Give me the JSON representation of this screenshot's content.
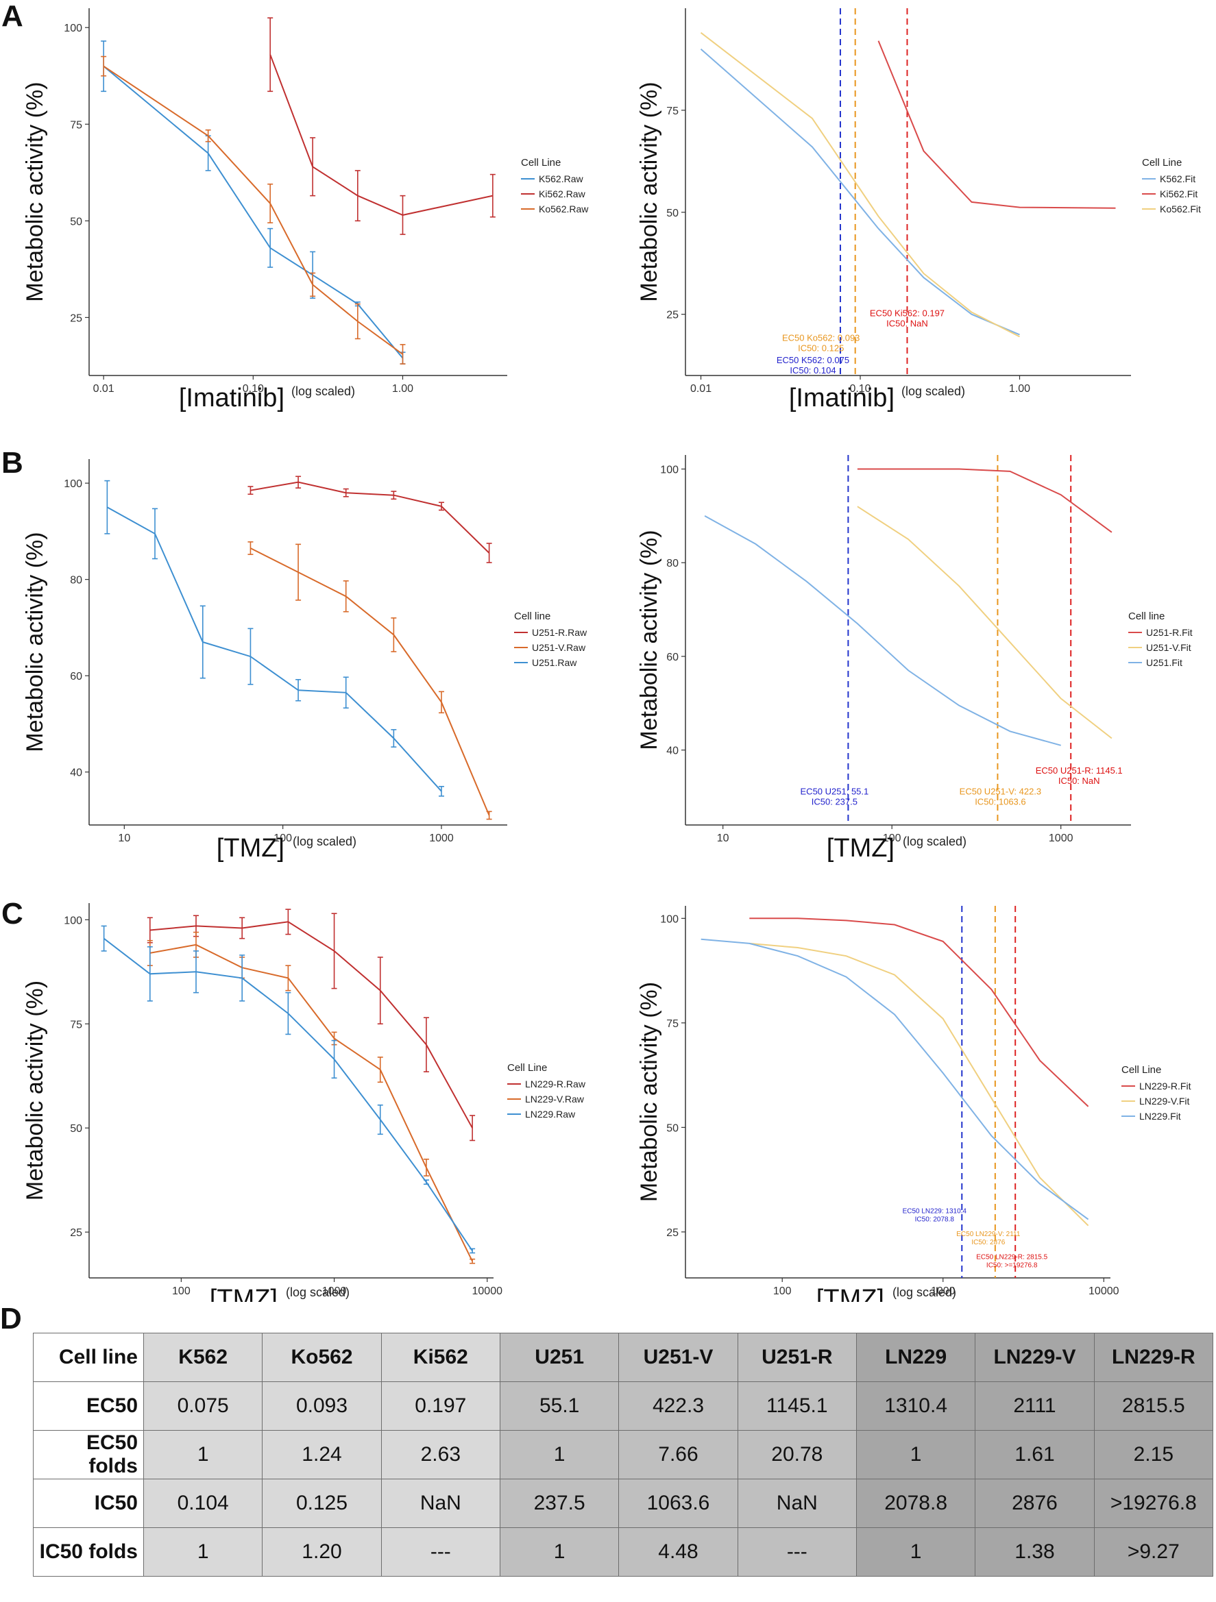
{
  "figure": {
    "panel_labels": [
      "A",
      "B",
      "C",
      "D"
    ],
    "y_axis_label": "Metabolic activity (%)",
    "x_suffix": "(log scaled)"
  },
  "chart_data": [
    {
      "id": "A-raw",
      "panel": "A",
      "type": "line",
      "error_bars": true,
      "xlabel": "[Imatinib]",
      "xlabel_suffix": "(log scaled)",
      "ylabel": "Metabolic activity (%)",
      "xscale": "log",
      "xlim": [
        0.008,
        5.0
      ],
      "ylim": [
        10,
        105
      ],
      "xticks": [
        0.01,
        0.1,
        1.0
      ],
      "xtick_labels": [
        "0.01",
        "0.10",
        "1.00"
      ],
      "yticks": [
        25,
        50,
        75,
        100
      ],
      "ytick_labels": [
        "25",
        "50",
        "75",
        "100"
      ],
      "legend_title": "Cell Line",
      "series": [
        {
          "name": "K562.Raw",
          "color": "#3d8fd1",
          "x": [
            0.01,
            0.05,
            0.13,
            0.25,
            0.5,
            1.0
          ],
          "y": [
            90,
            67.5,
            43,
            36,
            28.5,
            14.5
          ],
          "err": [
            6.5,
            4.5,
            5,
            6,
            0.5,
            1.5
          ]
        },
        {
          "name": "Ki562.Raw",
          "color": "#c03030",
          "x": [
            0.13,
            0.25,
            0.5,
            1.0,
            4.0
          ],
          "y": [
            93,
            64,
            56.5,
            51.5,
            56.5
          ],
          "err": [
            9.5,
            7.5,
            6.5,
            5,
            5.5
          ]
        },
        {
          "name": "Ko562.Raw",
          "color": "#d86a2a",
          "x": [
            0.01,
            0.05,
            0.13,
            0.25,
            0.5,
            1.0
          ],
          "y": [
            90,
            72,
            54.5,
            33.5,
            24,
            15.5
          ],
          "err": [
            2.5,
            1.5,
            5,
            3,
            4.5,
            2.5
          ]
        }
      ]
    },
    {
      "id": "A-fit",
      "panel": "A",
      "type": "line",
      "xlabel": "[Imatinib]",
      "xlabel_suffix": "(log scaled)",
      "ylabel": "Metabolic activity (%)",
      "xscale": "log",
      "xlim": [
        0.008,
        5.0
      ],
      "ylim": [
        10,
        100
      ],
      "xticks": [
        0.01,
        0.1,
        1.0
      ],
      "xtick_labels": [
        "0.01",
        "0.10",
        "1.00"
      ],
      "yticks": [
        25,
        50,
        75
      ],
      "ytick_labels": [
        "25",
        "50",
        "75"
      ],
      "legend_title": "Cell Line",
      "series": [
        {
          "name": "K562.Fit",
          "color": "#7fb2e5",
          "x": [
            0.01,
            0.05,
            0.13,
            0.25,
            0.5,
            1.0
          ],
          "y": [
            90,
            66,
            46,
            34,
            25,
            20
          ]
        },
        {
          "name": "Ki562.Fit",
          "color": "#d94a4a",
          "x": [
            0.13,
            0.25,
            0.5,
            1.0,
            4.0
          ],
          "y": [
            92,
            65,
            52.5,
            51.2,
            51
          ]
        },
        {
          "name": "Ko562.Fit",
          "color": "#f0d080",
          "x": [
            0.01,
            0.05,
            0.13,
            0.25,
            0.5,
            1.0
          ],
          "y": [
            94,
            73,
            49,
            35,
            25.5,
            19.5
          ]
        }
      ],
      "vlines": [
        {
          "x": 0.075,
          "color": "#2233cc"
        },
        {
          "x": 0.093,
          "color": "#e8961e"
        },
        {
          "x": 0.197,
          "color": "#dd2222"
        }
      ],
      "annotations": [
        {
          "lines": [
            "EC50 Ki562:  0.197",
            "IC50:  NaN"
          ],
          "color": "#dd1111",
          "x": 0.197,
          "y": 24.5
        },
        {
          "lines": [
            "EC50 Ko562:  0.093",
            "IC50:  0.125"
          ],
          "color": "#e8961e",
          "x": 0.093,
          "y": 18.5
        },
        {
          "lines": [
            "EC50 K562:  0.075",
            "IC50:  0.104"
          ],
          "color": "#2222cc",
          "x": 0.075,
          "y": 13
        }
      ]
    },
    {
      "id": "B-raw",
      "panel": "B",
      "type": "line",
      "error_bars": true,
      "xlabel": "[TMZ]",
      "xlabel_suffix": "(log scaled)",
      "ylabel": "Metabolic activity (%)",
      "xscale": "log",
      "xlim": [
        6,
        2600
      ],
      "ylim": [
        29,
        105
      ],
      "xticks": [
        10,
        100,
        1000
      ],
      "xtick_labels": [
        "10",
        "100",
        "1000"
      ],
      "yticks": [
        40,
        60,
        80,
        100
      ],
      "ytick_labels": [
        "40",
        "60",
        "80",
        "100"
      ],
      "legend_title": "Cell line",
      "series": [
        {
          "name": "U251-R.Raw",
          "color": "#c03030",
          "x": [
            62.5,
            125,
            250,
            500,
            1000,
            2000
          ],
          "y": [
            98.5,
            100.2,
            98,
            97.5,
            95.2,
            85.5
          ],
          "err": [
            0.8,
            1.2,
            0.8,
            0.8,
            0.8,
            2
          ]
        },
        {
          "name": "U251-V.Raw",
          "color": "#d86a2a",
          "x": [
            62.5,
            125,
            250,
            500,
            1000,
            2000
          ],
          "y": [
            86.5,
            81.5,
            76.5,
            68.5,
            54.5,
            31
          ],
          "err": [
            1.3,
            5.8,
            3.2,
            3.5,
            2.2,
            0.8
          ]
        },
        {
          "name": "U251.Raw",
          "color": "#3d8fd1",
          "x": [
            7.8,
            15.6,
            31.25,
            62.5,
            125,
            250,
            500,
            1000
          ],
          "y": [
            95,
            89.5,
            67,
            64,
            57,
            56.5,
            47,
            36
          ],
          "err": [
            5.5,
            5.2,
            7.5,
            5.8,
            2.2,
            3.2,
            1.8,
            1
          ]
        }
      ]
    },
    {
      "id": "B-fit",
      "panel": "B",
      "type": "line",
      "xlabel": "[TMZ]",
      "xlabel_suffix": "(log scaled)",
      "ylabel": "Metabolic activity (%)",
      "xscale": "log",
      "xlim": [
        6,
        2600
      ],
      "ylim": [
        24,
        103
      ],
      "xticks": [
        10,
        100,
        1000
      ],
      "xtick_labels": [
        "10",
        "100",
        "1000"
      ],
      "yticks": [
        40,
        60,
        80,
        100
      ],
      "ytick_labels": [
        "40",
        "60",
        "80",
        "100"
      ],
      "legend_title": "Cell line",
      "series": [
        {
          "name": "U251-R.Fit",
          "color": "#d94a4a",
          "x": [
            62.5,
            125,
            250,
            500,
            1000,
            2000
          ],
          "y": [
            100,
            100,
            100,
            99.5,
            94.5,
            86.5
          ]
        },
        {
          "name": "U251-V.Fit",
          "color": "#f0d080",
          "x": [
            62.5,
            125,
            250,
            500,
            1000,
            2000
          ],
          "y": [
            92,
            85,
            75,
            63,
            51,
            42.5
          ]
        },
        {
          "name": "U251.Fit",
          "color": "#7fb2e5",
          "x": [
            7.8,
            15.6,
            31.25,
            62.5,
            125,
            250,
            500,
            1000
          ],
          "y": [
            90,
            84,
            76,
            67,
            57,
            49.5,
            44,
            41
          ]
        }
      ],
      "vlines": [
        {
          "x": 55.1,
          "color": "#2233cc"
        },
        {
          "x": 422.3,
          "color": "#e8961e"
        },
        {
          "x": 1145.1,
          "color": "#dd2222"
        }
      ],
      "annotations": [
        {
          "lines": [
            "EC50 U251-R:  1145.1",
            "IC50:  NaN"
          ],
          "color": "#dd1111",
          "x": 1145.1,
          "y": 35
        },
        {
          "lines": [
            "EC50 U251:  55.1",
            "IC50:  237.5"
          ],
          "color": "#2222cc",
          "x": 55.1,
          "y": 30.5
        },
        {
          "lines": [
            "EC50 U251-V:  422.3",
            "IC50:  1063.6"
          ],
          "color": "#e8961e",
          "x": 422.3,
          "y": 30.5
        }
      ]
    },
    {
      "id": "C-raw",
      "panel": "C",
      "type": "line",
      "error_bars": true,
      "xlabel": "[TMZ]",
      "xlabel_suffix": "(log scaled)",
      "ylabel": "Metabolic activity (%)",
      "xscale": "log",
      "xlim": [
        25,
        11000
      ],
      "ylim": [
        14,
        104
      ],
      "xticks": [
        100,
        1000,
        10000
      ],
      "xtick_labels": [
        "100",
        "1000",
        "10000"
      ],
      "yticks": [
        25,
        50,
        75,
        100
      ],
      "ytick_labels": [
        "25",
        "50",
        "75",
        "100"
      ],
      "legend_title": "Cell Line",
      "series": [
        {
          "name": "LN229-R.Raw",
          "color": "#c03030",
          "x": [
            62.5,
            125,
            250,
            500,
            1000,
            2000,
            4000,
            8000
          ],
          "y": [
            97.5,
            98.5,
            98,
            99.5,
            92.5,
            83,
            70,
            50
          ],
          "err": [
            3,
            2.5,
            2.5,
            3,
            9,
            8,
            6.5,
            3
          ]
        },
        {
          "name": "LN229-V.Raw",
          "color": "#d86a2a",
          "x": [
            62.5,
            125,
            250,
            500,
            1000,
            2000,
            4000,
            8000
          ],
          "y": [
            92,
            94,
            88.5,
            86,
            71.5,
            64,
            40.5,
            18
          ],
          "err": [
            3,
            3,
            2.5,
            3,
            1.5,
            3,
            2,
            0.5
          ]
        },
        {
          "name": "LN229.Raw",
          "color": "#3d8fd1",
          "x": [
            31.25,
            62.5,
            125,
            250,
            500,
            1000,
            2000,
            4000,
            8000
          ],
          "y": [
            95.5,
            87,
            87.5,
            86,
            77.5,
            66.5,
            52,
            37,
            20.5
          ],
          "err": [
            3,
            6.5,
            5,
            5.5,
            5,
            4.5,
            3.5,
            0.5,
            0.5
          ]
        }
      ]
    },
    {
      "id": "C-fit",
      "panel": "C",
      "type": "line",
      "xlabel": "[TMZ]",
      "xlabel_suffix": "(log scaled)",
      "ylabel": "Metabolic activity (%)",
      "xscale": "log",
      "xlim": [
        25,
        11000
      ],
      "ylim": [
        14,
        103
      ],
      "xticks": [
        100,
        1000,
        10000
      ],
      "xtick_labels": [
        "100",
        "1000",
        "10000"
      ],
      "yticks": [
        25,
        50,
        75,
        100
      ],
      "ytick_labels": [
        "25",
        "50",
        "75",
        "100"
      ],
      "legend_title": "Cell Line",
      "series": [
        {
          "name": "LN229-R.Fit",
          "color": "#d94a4a",
          "x": [
            62.5,
            125,
            250,
            500,
            1000,
            2000,
            4000,
            8000
          ],
          "y": [
            100,
            100,
            99.5,
            98.5,
            94.5,
            83,
            66,
            55
          ]
        },
        {
          "name": "LN229-V.Fit",
          "color": "#f0d080",
          "x": [
            62.5,
            125,
            250,
            500,
            1000,
            2000,
            4000,
            8000
          ],
          "y": [
            94,
            93,
            91,
            86.5,
            76,
            57,
            38,
            26.5
          ]
        },
        {
          "name": "LN229.Fit",
          "color": "#7fb2e5",
          "x": [
            31.25,
            62.5,
            125,
            250,
            500,
            1000,
            2000,
            4000,
            8000
          ],
          "y": [
            95,
            94,
            91,
            86,
            77,
            63,
            48,
            36.5,
            28
          ]
        }
      ],
      "vlines": [
        {
          "x": 1310.4,
          "color": "#2233cc"
        },
        {
          "x": 2111,
          "color": "#e8961e"
        },
        {
          "x": 2815.5,
          "color": "#dd2222"
        }
      ],
      "annotations": [
        {
          "lines": [
            "EC50 LN229:  1310.4",
            "IC50:  2078.8"
          ],
          "color": "#2222cc",
          "x": 1310.4,
          "y": 29.5
        },
        {
          "lines": [
            "EC50 LN229-V:  2111",
            "IC50:  2876"
          ],
          "color": "#e8961e",
          "x": 2111,
          "y": 24
        },
        {
          "lines": [
            "EC50 LN229-R:  2815.5",
            "IC50:  >=19276.8"
          ],
          "color": "#dd1111",
          "x": 2815.5,
          "y": 18.5
        }
      ]
    }
  ],
  "table": {
    "header": [
      "Cell line",
      "K562",
      "Ko562",
      "Ki562",
      "U251",
      "U251-V",
      "U251-R",
      "LN229",
      "LN229-V",
      "LN229-R"
    ],
    "rows": [
      {
        "label": "EC50",
        "values": [
          "0.075",
          "0.093",
          "0.197",
          "55.1",
          "422.3",
          "1145.1",
          "1310.4",
          "2111",
          "2815.5"
        ]
      },
      {
        "label": "EC50 folds",
        "values": [
          "1",
          "1.24",
          "2.63",
          "1",
          "7.66",
          "20.78",
          "1",
          "1.61",
          "2.15"
        ]
      },
      {
        "label": "IC50",
        "values": [
          "0.104",
          "0.125",
          "NaN",
          "237.5",
          "1063.6",
          "NaN",
          "2078.8",
          "2876",
          ">19276.8"
        ]
      },
      {
        "label": "IC50 folds",
        "values": [
          "1",
          "1.20",
          "---",
          "1",
          "4.48",
          "---",
          "1",
          "1.38",
          ">9.27"
        ]
      }
    ]
  }
}
